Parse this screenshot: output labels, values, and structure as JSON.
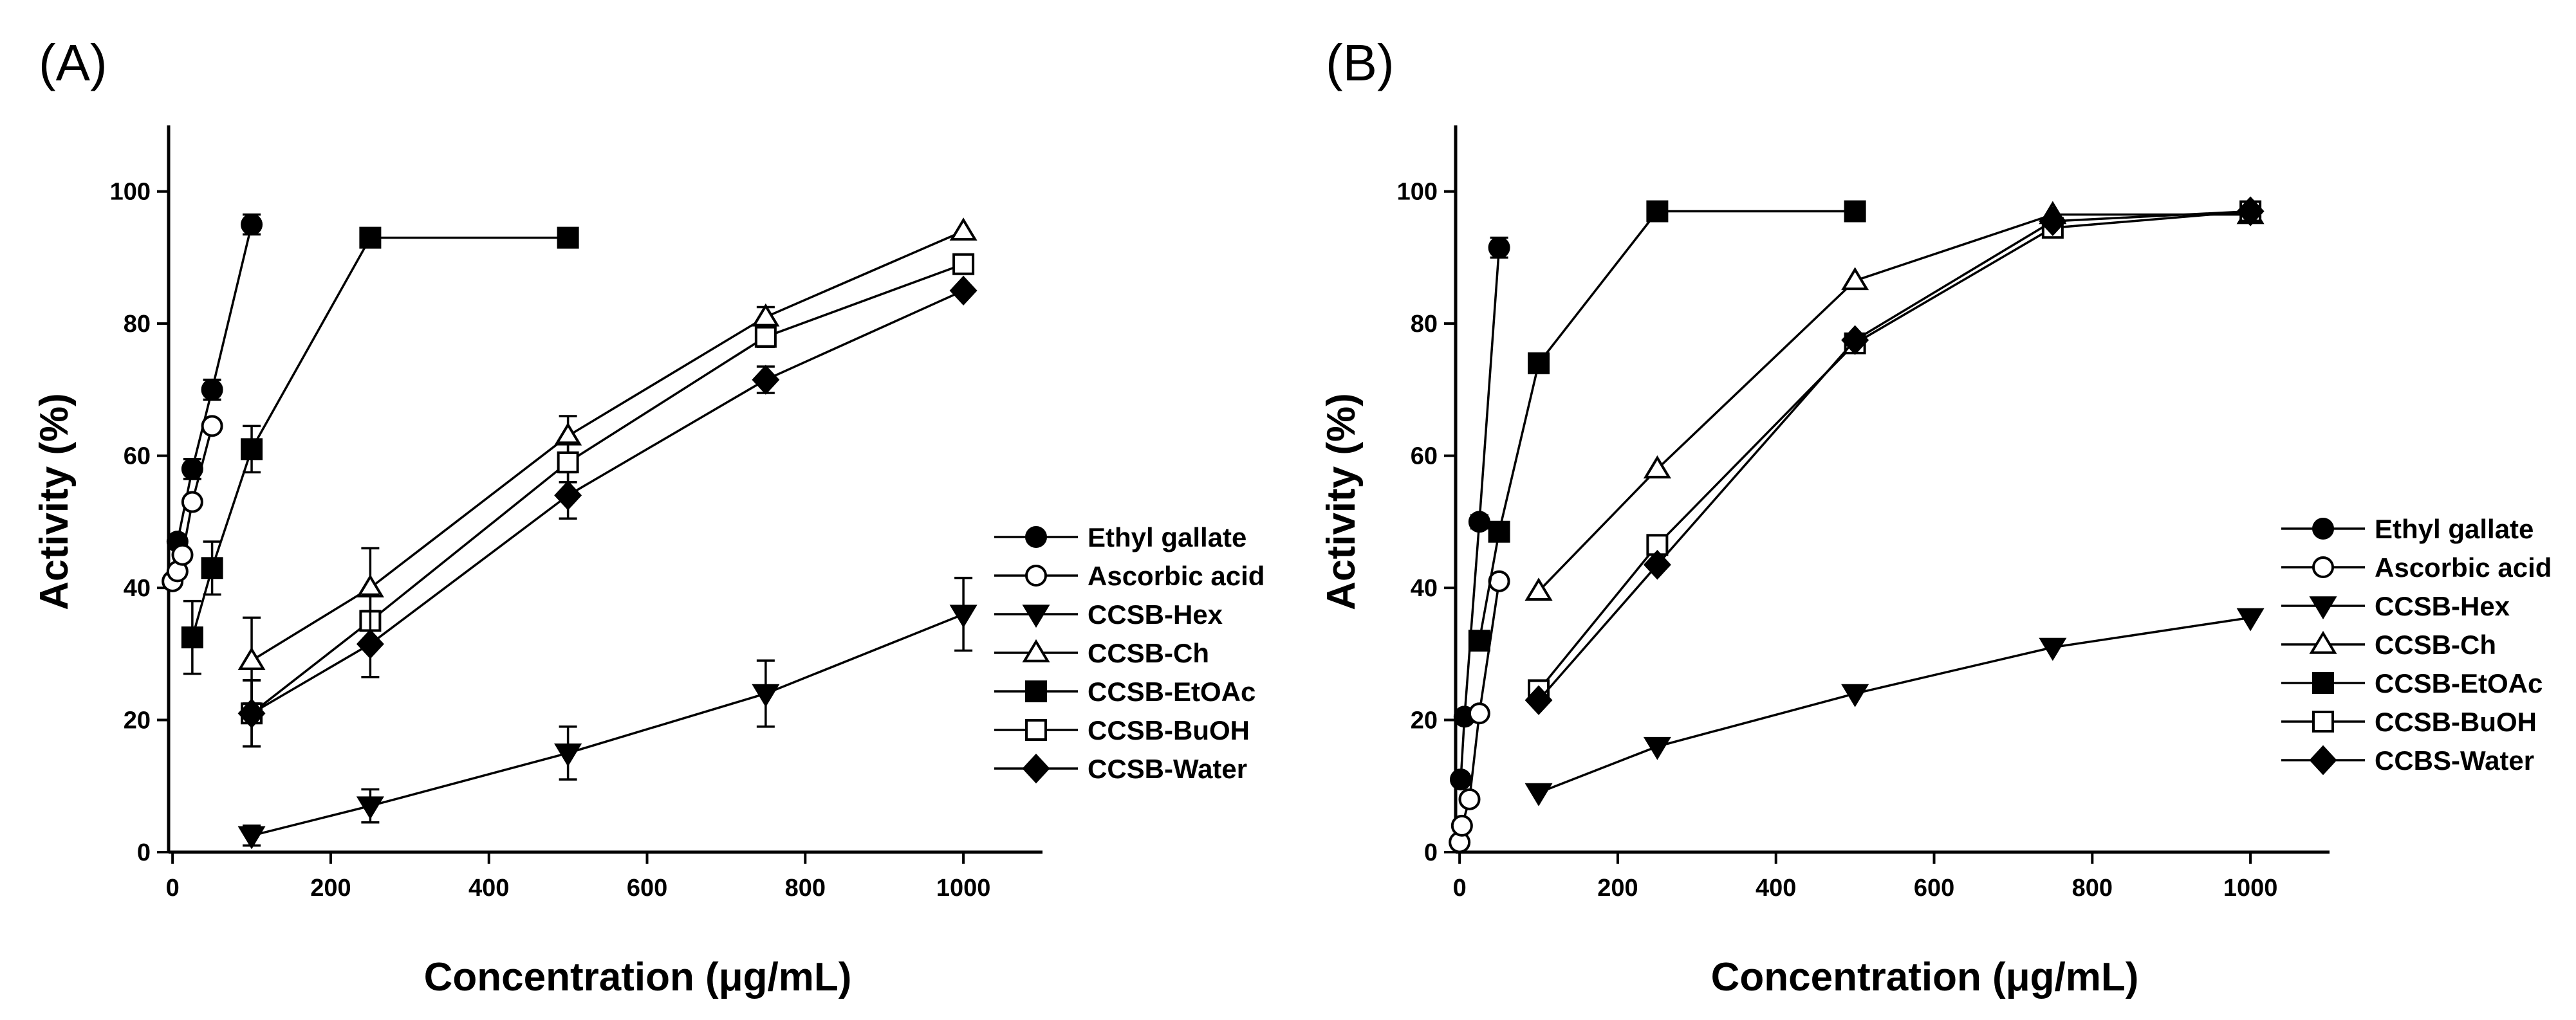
{
  "chart_data": [
    {
      "panel_label": "(A)",
      "type": "line",
      "xlabel": "Concentration (μg/mL)",
      "ylabel": "Activity (%)",
      "xlim": [
        -5,
        1100
      ],
      "ylim": [
        0,
        110
      ],
      "xticks": [
        0,
        200,
        400,
        600,
        800,
        1000
      ],
      "yticks": [
        0,
        20,
        40,
        60,
        80,
        100
      ],
      "legend_position": "right",
      "series": [
        {
          "name": "Ethyl gallate",
          "marker": "circle",
          "filled": true,
          "x": [
            6.25,
            25,
            50,
            100
          ],
          "y": [
            47,
            58,
            70,
            95
          ],
          "err": [
            0,
            1.5,
            1.5,
            1.5
          ]
        },
        {
          "name": "Ascorbic acid",
          "marker": "circle",
          "filled": false,
          "x": [
            0,
            6.25,
            12.5,
            25,
            50
          ],
          "y": [
            41,
            42.5,
            45,
            53,
            64.5
          ],
          "err": [
            0,
            0,
            0,
            0,
            0
          ]
        },
        {
          "name": "CCSB-Hex",
          "marker": "triangle-down",
          "filled": true,
          "x": [
            100,
            250,
            500,
            750,
            1000
          ],
          "y": [
            2.5,
            7,
            15,
            24,
            36
          ],
          "err": [
            1.5,
            2.5,
            4,
            5,
            5.5
          ]
        },
        {
          "name": "CCSB-Ch",
          "marker": "triangle-up",
          "filled": false,
          "x": [
            100,
            250,
            500,
            750,
            1000
          ],
          "y": [
            29,
            40,
            63,
            81,
            94
          ],
          "err": [
            6.5,
            6,
            3,
            1.5,
            0
          ]
        },
        {
          "name": "CCSB-EtOAc",
          "marker": "square",
          "filled": true,
          "x": [
            25,
            50,
            100,
            250,
            500
          ],
          "y": [
            32.5,
            43,
            61,
            93,
            93
          ],
          "err": [
            5.5,
            4,
            3.5,
            0,
            0
          ]
        },
        {
          "name": "CCSB-BuOH",
          "marker": "square",
          "filled": false,
          "x": [
            100,
            250,
            500,
            750,
            1000
          ],
          "y": [
            21,
            35,
            59,
            78,
            89
          ],
          "err": [
            5,
            4,
            3,
            1.5,
            0
          ]
        },
        {
          "name": "CCSB-Water",
          "marker": "diamond",
          "filled": true,
          "x": [
            100,
            250,
            500,
            750,
            1000
          ],
          "y": [
            21,
            31.5,
            54,
            71.5,
            85
          ],
          "err": [
            5,
            5,
            3.5,
            2,
            0
          ]
        }
      ]
    },
    {
      "panel_label": "(B)",
      "type": "line",
      "xlabel": "Concentration (μg/mL)",
      "ylabel": "Activity (%)",
      "xlim": [
        -5,
        1100
      ],
      "ylim": [
        0,
        110
      ],
      "xticks": [
        0,
        200,
        400,
        600,
        800,
        1000
      ],
      "yticks": [
        0,
        20,
        40,
        60,
        80,
        100
      ],
      "legend_position": "right",
      "series": [
        {
          "name": "Ethyl gallate",
          "marker": "circle",
          "filled": true,
          "x": [
            1.5,
            6.25,
            25,
            50
          ],
          "y": [
            11,
            20.5,
            50,
            91.5
          ],
          "err": [
            0,
            0,
            1,
            1.5
          ]
        },
        {
          "name": "Ascorbic acid",
          "marker": "circle",
          "filled": false,
          "x": [
            0,
            3,
            12.5,
            25,
            50
          ],
          "y": [
            1.5,
            4,
            8,
            21,
            41
          ],
          "err": [
            0,
            0,
            0,
            0,
            0
          ]
        },
        {
          "name": "CCSB-Hex",
          "marker": "triangle-down",
          "filled": true,
          "x": [
            100,
            250,
            500,
            750,
            1000
          ],
          "y": [
            9,
            16,
            24,
            31,
            35.5
          ],
          "err": [
            0,
            0,
            0,
            0,
            0
          ]
        },
        {
          "name": "CCSB-Ch",
          "marker": "triangle-up",
          "filled": false,
          "x": [
            100,
            250,
            500,
            750,
            1000
          ],
          "y": [
            39.5,
            58,
            86.5,
            96.5,
            96.5
          ],
          "err": [
            0,
            0,
            0,
            0,
            0
          ]
        },
        {
          "name": "CCSB-EtOAc",
          "marker": "square",
          "filled": true,
          "x": [
            25,
            50,
            100,
            250,
            500
          ],
          "y": [
            32,
            48.5,
            74,
            97,
            97
          ],
          "err": [
            0,
            0,
            0,
            0,
            0
          ]
        },
        {
          "name": "CCSB-BuOH",
          "marker": "square",
          "filled": false,
          "x": [
            100,
            250,
            500,
            750,
            1000
          ],
          "y": [
            24.5,
            46.5,
            77,
            94.5,
            97
          ],
          "err": [
            0,
            0,
            0,
            0,
            0
          ]
        },
        {
          "name": "CCBS-Water",
          "marker": "diamond",
          "filled": true,
          "x": [
            100,
            250,
            500,
            750,
            1000
          ],
          "y": [
            23,
            43.5,
            77.5,
            95.5,
            97
          ],
          "err": [
            0,
            0,
            0,
            0,
            0
          ]
        }
      ]
    }
  ]
}
